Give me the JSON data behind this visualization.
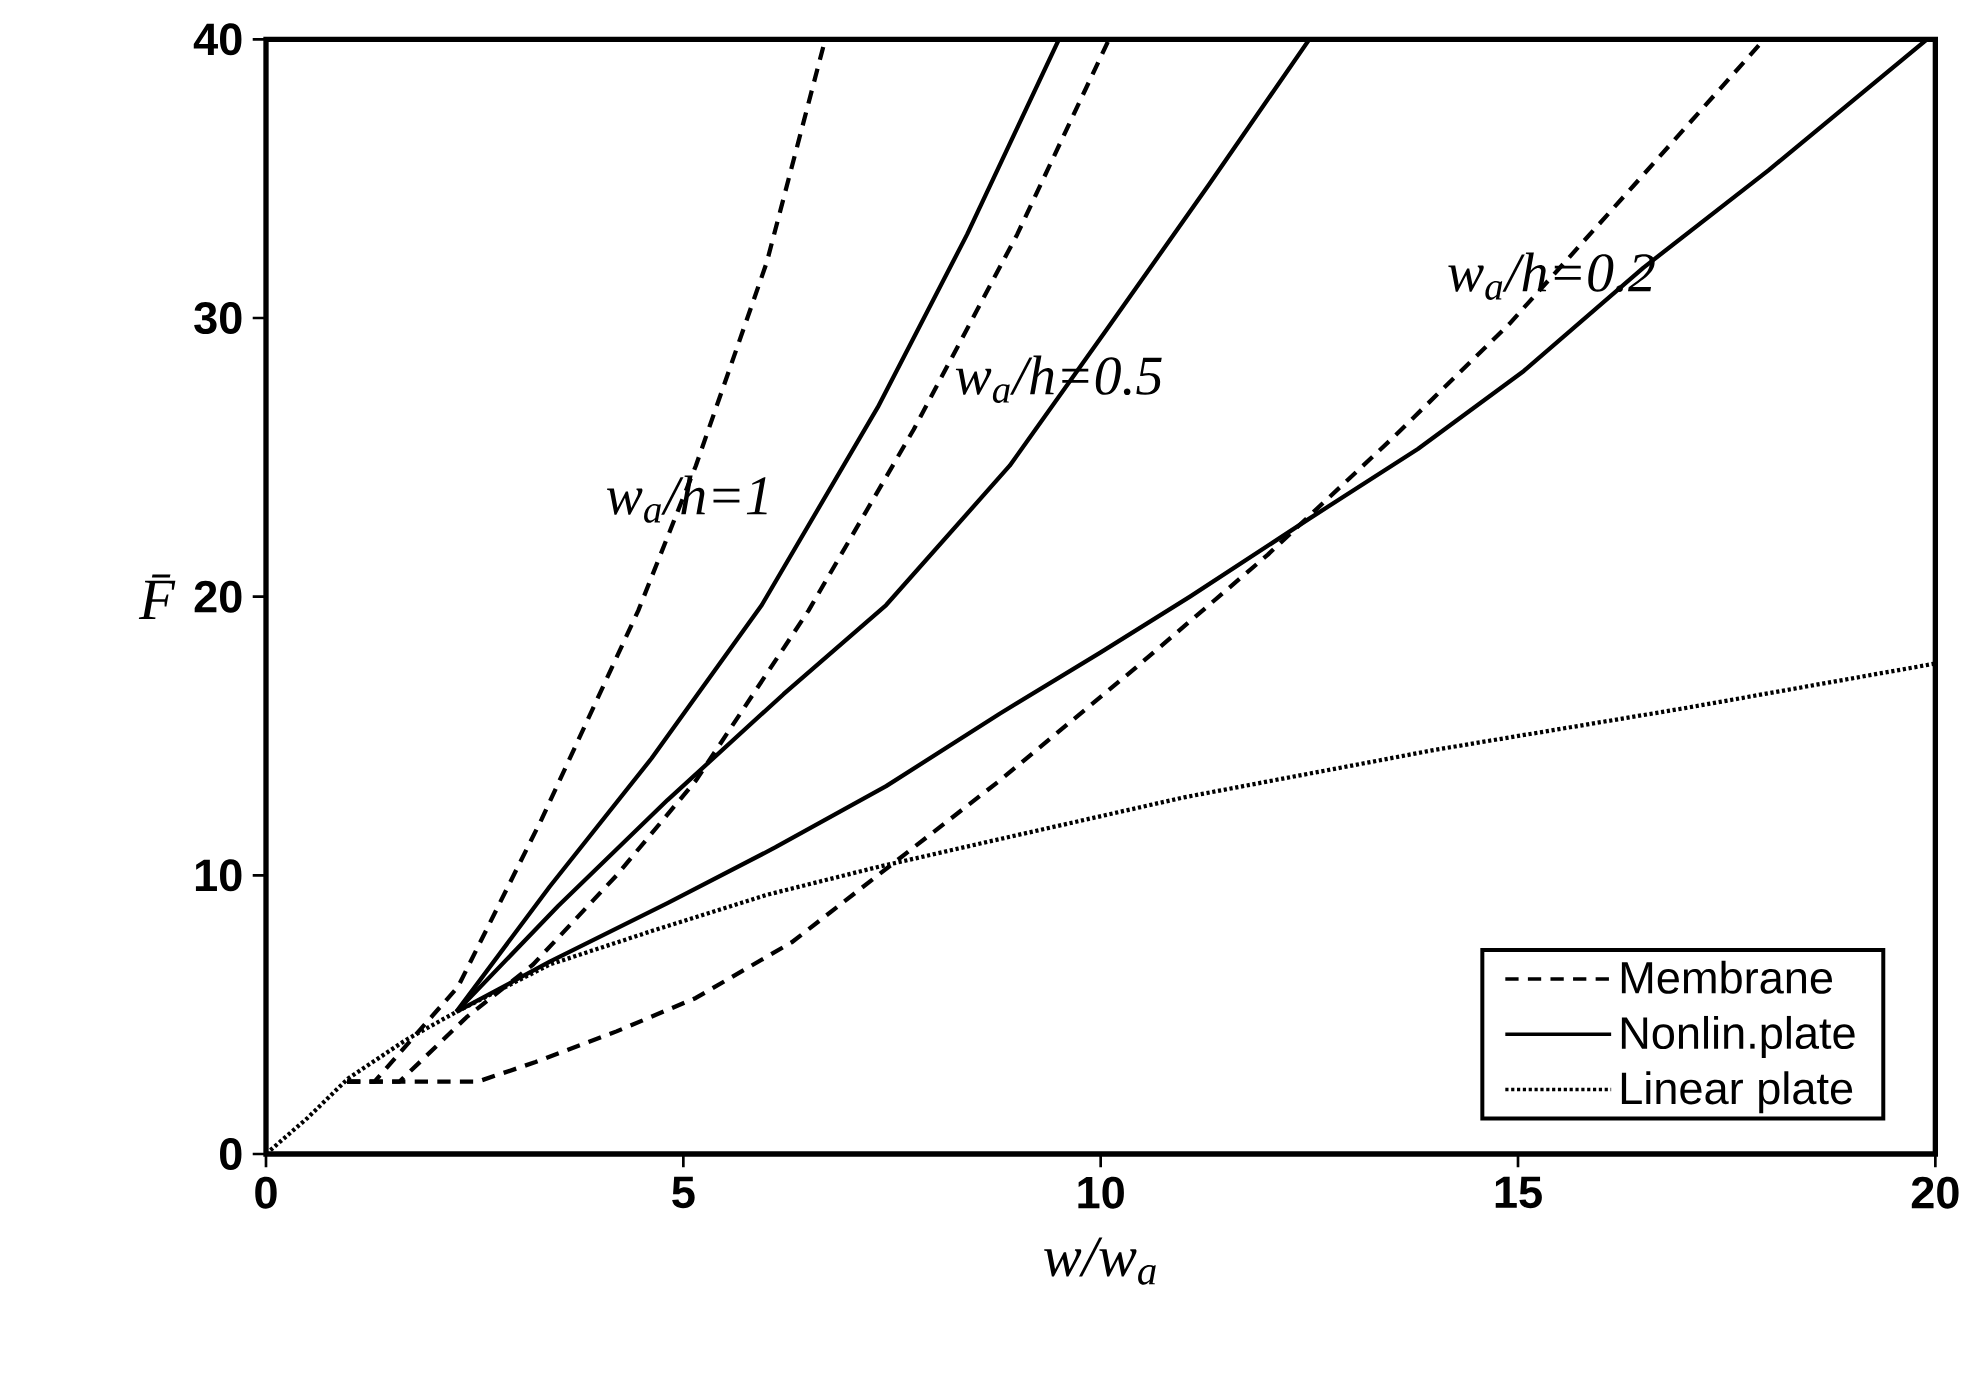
{
  "chart_data": {
    "type": "line",
    "xlabel": "w/w$_{a}$",
    "ylabel": "F̄",
    "xlim": [
      0,
      20
    ],
    "ylim": [
      0,
      40
    ],
    "xticks": [
      0,
      5,
      10,
      15,
      20
    ],
    "yticks": [
      0,
      10,
      20,
      30,
      40
    ],
    "legend": "bottom right",
    "grid": false,
    "series": [
      {
        "name": "Membrane",
        "color": "#000000",
        "line_style": "dashed",
        "x": [
          0.97,
          1.3,
          2.3,
          3.3,
          4.46,
          5.15,
          6.0,
          6.7
        ],
        "values": [
          2.6,
          2.6,
          6,
          12,
          19.5,
          24.7,
          32,
          40
        ]
      },
      {
        "color": "#000000",
        "line_style": "dashed",
        "x": [
          0.97,
          1.6,
          2.4,
          3.2,
          4.2,
          5.15,
          6.5,
          7.76,
          9,
          10.1
        ],
        "values": [
          2.6,
          2.6,
          4.9,
          6.8,
          10,
          13.4,
          19.5,
          26,
          33,
          40
        ]
      },
      {
        "color": "#000000",
        "line_style": "dashed",
        "x": [
          0.97,
          2.54,
          3.23,
          4.2,
          5.15,
          6.3,
          7.33,
          8.79,
          10.4,
          12,
          13.5,
          14.9,
          16.4,
          17.95
        ],
        "values": [
          2.6,
          2.6,
          3.3,
          4.4,
          5.6,
          7.6,
          10,
          13.4,
          17.4,
          21.5,
          25.7,
          29.8,
          34.8,
          40
        ]
      },
      {
        "name": "Nonlin.plate",
        "color": "#000000",
        "line_style": "solid",
        "x": [
          2.28,
          3.4,
          4.62,
          5.94,
          7.33,
          8.4,
          9.5
        ],
        "values": [
          5.1,
          9.6,
          14.2,
          19.7,
          26.8,
          33,
          40
        ]
      },
      {
        "color": "#000000",
        "line_style": "solid",
        "x": [
          2.28,
          3.5,
          4.81,
          6.2,
          7.43,
          8.91,
          10.1,
          11.3,
          12.5
        ],
        "values": [
          5.1,
          8.9,
          12.7,
          16.5,
          19.7,
          24.7,
          29.7,
          34.8,
          40
        ]
      },
      {
        "color": "#000000",
        "line_style": "solid",
        "x": [
          2.28,
          3.4,
          4.81,
          6.1,
          7.43,
          8.79,
          10,
          11.07,
          12.5,
          13.8,
          15.07,
          16.5,
          18,
          19.9
        ],
        "values": [
          5.1,
          6.9,
          9.0,
          11,
          13.2,
          15.8,
          18,
          20,
          22.8,
          25.3,
          28.1,
          31.8,
          35.3,
          40
        ]
      },
      {
        "name": "Linear plate",
        "color": "#000000",
        "line_style": "dotted",
        "x": [
          0,
          0.5,
          0.98,
          1.68,
          2.28,
          3.4,
          4.62,
          6,
          7.33,
          8.79,
          11,
          14,
          17,
          20
        ],
        "values": [
          0,
          1.3,
          2.7,
          4.1,
          5.1,
          6.8,
          8.0,
          9.3,
          10.3,
          11.3,
          12.8,
          14.5,
          16,
          17.6
        ]
      }
    ],
    "annotations": [
      {
        "text": "w$_{a}$/h=1",
        "x": 5.07,
        "y": 23.5
      },
      {
        "text": "w$_{a}$/h=0.5",
        "x": 9.5,
        "y": 27.8
      },
      {
        "text": "w$_{a}$/h=0.2",
        "x": 15.4,
        "y": 31.5
      }
    ]
  }
}
